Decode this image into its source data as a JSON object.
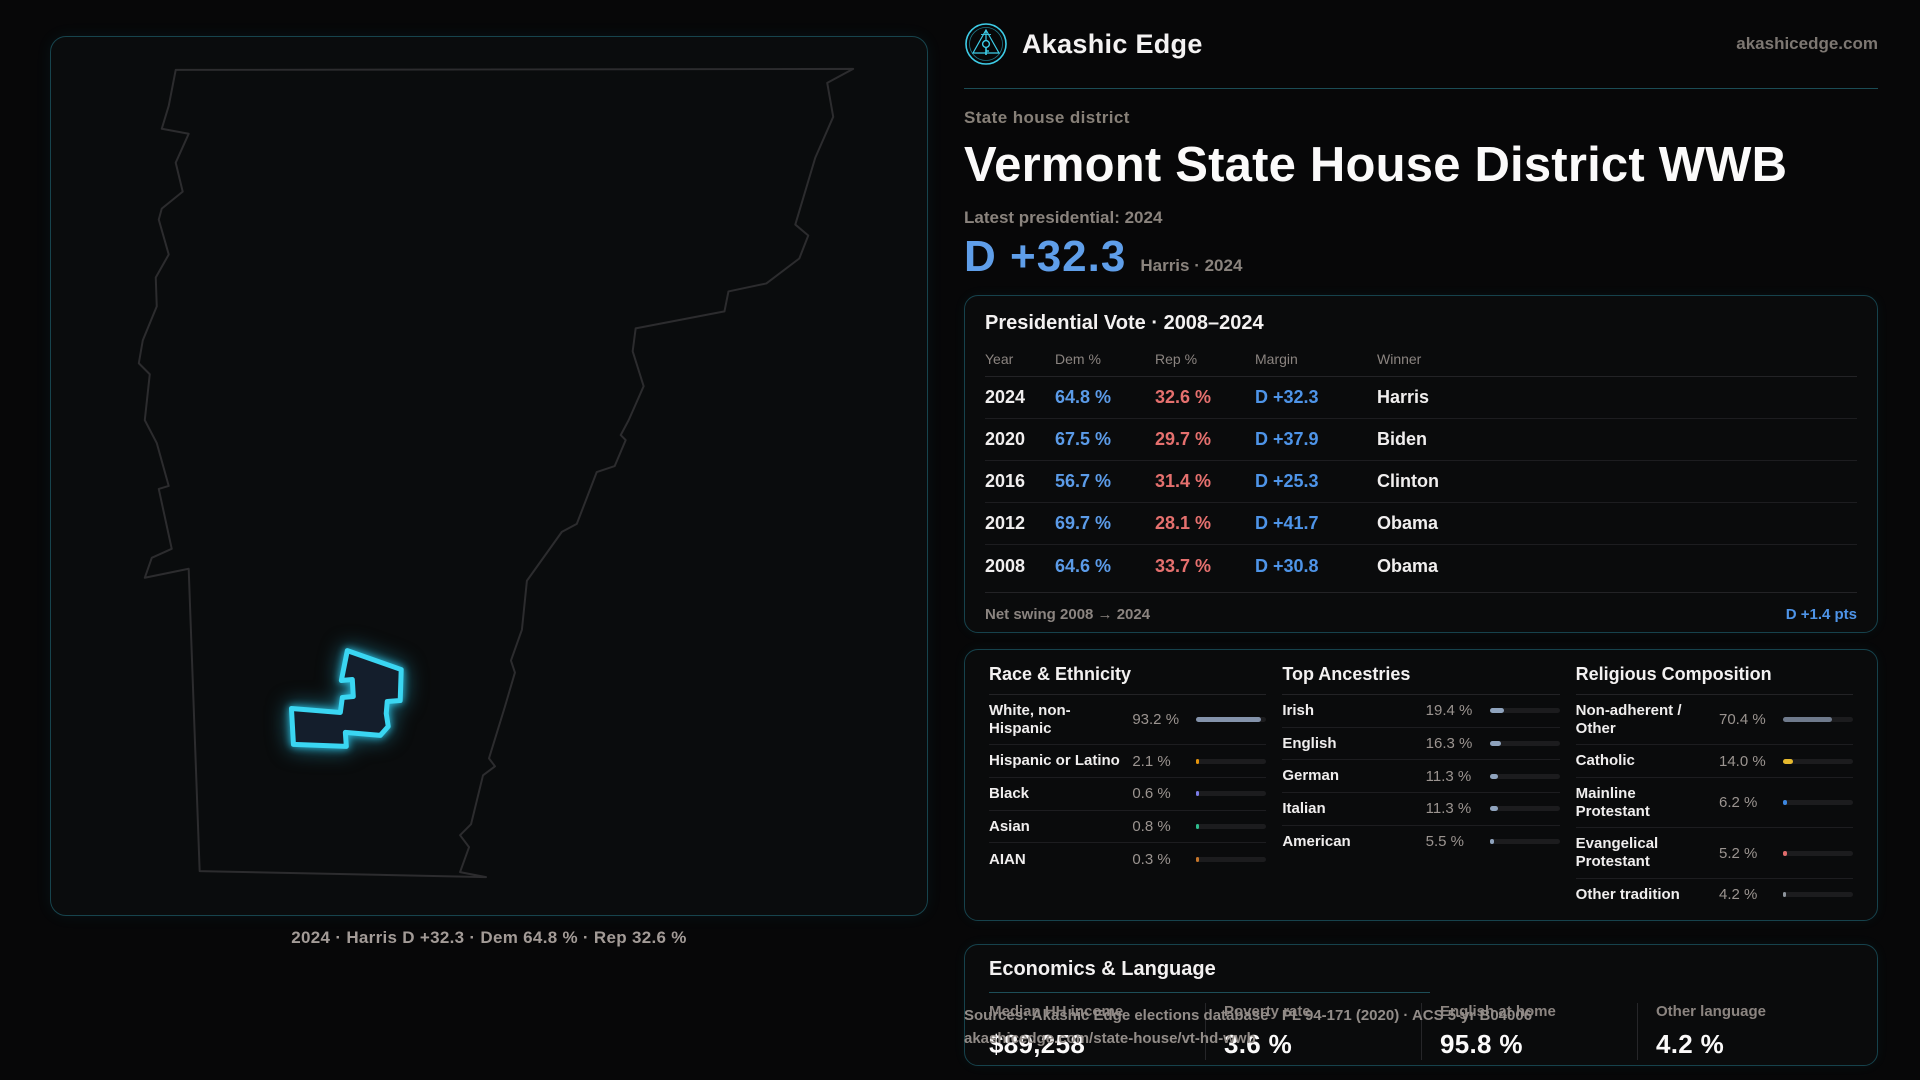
{
  "header": {
    "brand": "Akashic Edge",
    "site_url": "akashicedge.com"
  },
  "hero": {
    "eyebrow": "State house district",
    "title": "Vermont State House District WWB",
    "latest_label": "Latest presidential: 2024",
    "margin_big": "D +32.3",
    "margin_detail": "Harris · 2024"
  },
  "map": {
    "caption": "2024 · Harris D +32.3 · Dem 64.8 % · Rep 32.6 %"
  },
  "pres_table": {
    "title": "Presidential Vote · 2008–2024",
    "columns": [
      "Year",
      "Dem %",
      "Rep %",
      "Margin",
      "Winner"
    ],
    "rows": [
      {
        "year": "2024",
        "dem": "64.8 %",
        "rep": "32.6 %",
        "margin": "D +32.3",
        "winner": "Harris"
      },
      {
        "year": "2020",
        "dem": "67.5 %",
        "rep": "29.7 %",
        "margin": "D +37.9",
        "winner": "Biden"
      },
      {
        "year": "2016",
        "dem": "56.7 %",
        "rep": "31.4 %",
        "margin": "D +25.3",
        "winner": "Clinton"
      },
      {
        "year": "2012",
        "dem": "69.7 %",
        "rep": "28.1 %",
        "margin": "D +41.7",
        "winner": "Obama"
      },
      {
        "year": "2008",
        "dem": "64.6 %",
        "rep": "33.7 %",
        "margin": "D +30.8",
        "winner": "Obama"
      }
    ],
    "footer": {
      "label": "Net swing 2008 → 2024",
      "value": "D +1.4 pts"
    }
  },
  "demographics": {
    "sections": [
      {
        "title": "Race & Ethnicity",
        "rows": [
          {
            "label": "White, non-Hispanic",
            "value": "93.2 %",
            "pct": 93.2,
            "color": "#8493ab"
          },
          {
            "label": "Hispanic or Latino",
            "value": "2.1 %",
            "pct": 2.1,
            "color": "#e5940c"
          },
          {
            "label": "Black",
            "value": "0.6 %",
            "pct": 0.6,
            "color": "#7b7ce6"
          },
          {
            "label": "Asian",
            "value": "0.8 %",
            "pct": 0.8,
            "color": "#2ebd8d"
          },
          {
            "label": "AIAN",
            "value": "0.3 %",
            "pct": 0.3,
            "color": "#c7762a"
          }
        ]
      },
      {
        "title": "Top Ancestries",
        "rows": [
          {
            "label": "Irish",
            "value": "19.4 %",
            "pct": 19.4,
            "color": "#8fa3bd"
          },
          {
            "label": "English",
            "value": "16.3 %",
            "pct": 16.3,
            "color": "#8fa3bd"
          },
          {
            "label": "German",
            "value": "11.3 %",
            "pct": 11.3,
            "color": "#8fa3bd"
          },
          {
            "label": "Italian",
            "value": "11.3 %",
            "pct": 11.3,
            "color": "#8fa3bd"
          },
          {
            "label": "American",
            "value": "5.5 %",
            "pct": 5.5,
            "color": "#8fa3bd"
          }
        ]
      },
      {
        "title": "Religious Composition",
        "rows": [
          {
            "label": "Non-adherent / Other",
            "value": "70.4 %",
            "pct": 70.4,
            "color": "#6f7a8c"
          },
          {
            "label": "Catholic",
            "value": "14.0 %",
            "pct": 14.0,
            "color": "#e6b92e"
          },
          {
            "label": "Mainline Protestant",
            "value": "6.2 %",
            "pct": 6.2,
            "color": "#3d87e0"
          },
          {
            "label": "Evangelical Protestant",
            "value": "5.2 %",
            "pct": 5.2,
            "color": "#e06c6c"
          },
          {
            "label": "Other tradition",
            "value": "4.2 %",
            "pct": 4.2,
            "color": "#8d949c"
          }
        ]
      }
    ]
  },
  "economics": {
    "title": "Economics & Language",
    "stats": [
      {
        "label": "Median HH income",
        "value": "$89,258"
      },
      {
        "label": "Poverty rate",
        "value": "3.6 %"
      },
      {
        "label": "English at home",
        "value": "95.8 %"
      },
      {
        "label": "Other language",
        "value": "4.2 %"
      }
    ]
  },
  "footer": {
    "sources_line": "Sources: Akashic Edge elections database · PL 94-171 (2020) · ACS 5-yr B04006",
    "permalink": "akashicedge.com/state-house/vt-hd-wwb"
  },
  "theme": {
    "accent_cyan": "#3ad6f2",
    "dem_blue": "#5b9be8",
    "rep_red": "#e5706e",
    "margin_blue": "#4e94e8",
    "card_border": "#16424c"
  }
}
